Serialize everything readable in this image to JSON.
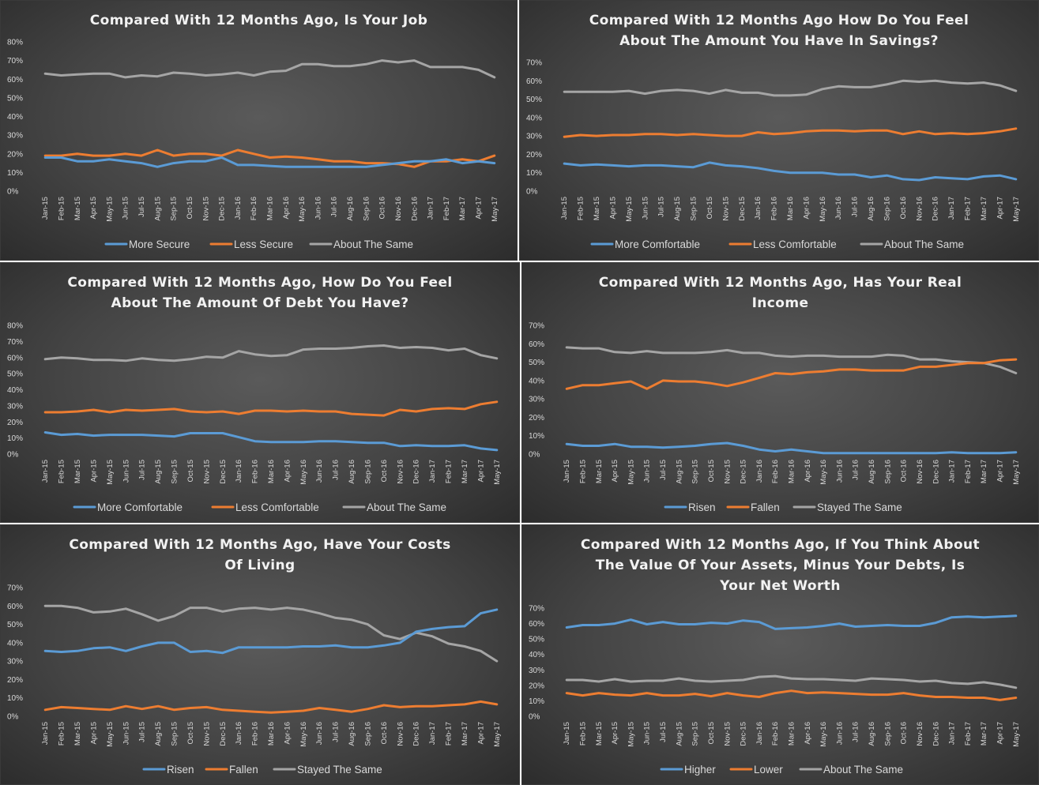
{
  "palette": {
    "s1": "#5b9bd5",
    "s2": "#ed7d31",
    "s3": "#a5a5a5"
  },
  "months": [
    "Jan-15",
    "Feb-15",
    "Mar-15",
    "Apr-15",
    "May-15",
    "Jun-15",
    "Jul-15",
    "Aug-15",
    "Sep-15",
    "Oct-15",
    "Nov-15",
    "Dec-15",
    "Jan-16",
    "Feb-16",
    "Mar-16",
    "Apr-16",
    "May-16",
    "Jun-16",
    "Jul-16",
    "Aug-16",
    "Sep-16",
    "Oct-16",
    "Nov-16",
    "Dec-16",
    "Jan-17",
    "Feb-17",
    "Mar-17",
    "Apr-17",
    "May-17"
  ],
  "chart_data": [
    {
      "type": "line",
      "title": [
        "Compared With 12 Months Ago, Is Your Job"
      ],
      "ylim": [
        0,
        80
      ],
      "yticks": [
        "0%",
        "10%",
        "20%",
        "30%",
        "40%",
        "50%",
        "60%",
        "70%",
        "80%"
      ],
      "x": [
        "Jan-15",
        "Feb-15",
        "Mar-15",
        "Apr-15",
        "May-15",
        "Jun-15",
        "Jul-15",
        "Aug-15",
        "Sep-15",
        "Oct-15",
        "Nov-15",
        "Dec-15",
        "Jan-16",
        "Feb-16",
        "Mar-16",
        "Apr-16",
        "May-16",
        "Jun-16",
        "Jul-16",
        "Aug-16",
        "Sep-16",
        "Oct-16",
        "Nov-16",
        "Dec-16",
        "Jan-17",
        "Feb-17",
        "Mar-17",
        "Apr-17",
        "May-17"
      ],
      "legend": "bottom",
      "series": [
        {
          "name": "More Secure",
          "values": [
            18,
            18,
            16,
            16,
            17,
            16,
            15,
            13,
            15,
            16,
            16,
            18,
            14,
            14,
            13.5,
            13,
            13,
            13,
            13,
            13,
            13,
            14,
            15,
            16,
            16,
            17,
            15,
            16,
            15
          ]
        },
        {
          "name": "Less Secure",
          "values": [
            19,
            19,
            20,
            19,
            19,
            20,
            19,
            22,
            19,
            20,
            20,
            19,
            22,
            20,
            18,
            18.5,
            18,
            17,
            16,
            16,
            15,
            15,
            14.5,
            13,
            16,
            16,
            17,
            16,
            19
          ]
        },
        {
          "name": "About The Same",
          "values": [
            63,
            62,
            62.5,
            63,
            63,
            61,
            62,
            61.5,
            63.5,
            63,
            62,
            62.5,
            63.5,
            62,
            64,
            64.5,
            68,
            68,
            67,
            67,
            68,
            70,
            69,
            70,
            66.5,
            66.5,
            66.5,
            65,
            61
          ]
        }
      ]
    },
    {
      "type": "line",
      "title": [
        "Compared With 12 Months Ago How Do You Feel",
        "About The Amount You Have In Savings?"
      ],
      "ylim": [
        0,
        70
      ],
      "yticks": [
        "0%",
        "10%",
        "20%",
        "30%",
        "40%",
        "50%",
        "60%",
        "70%"
      ],
      "x": [
        "Jan-15",
        "Feb-15",
        "Mar-15",
        "Apr-15",
        "May-15",
        "Jun-15",
        "Jul-15",
        "Aug-15",
        "Sep-15",
        "Oct-15",
        "Nov-15",
        "Dec-15",
        "Jan-16",
        "Feb-16",
        "Mar-16",
        "Apr-16",
        "May-16",
        "Jun-16",
        "Jul-16",
        "Aug-16",
        "Sep-16",
        "Oct-16",
        "Nov-16",
        "Dec-16",
        "Jan-17",
        "Feb-17",
        "Mar-17",
        "Apr-17",
        "May-17"
      ],
      "legend": "bottom",
      "series": [
        {
          "name": "More Comfortable",
          "values": [
            15,
            14,
            14.5,
            14,
            13.5,
            14,
            14,
            13.5,
            13,
            15.5,
            14,
            13.5,
            12.5,
            11,
            10,
            10,
            10,
            9,
            9,
            7.5,
            8.5,
            6.5,
            6,
            7.5,
            7,
            6.5,
            8,
            8.5,
            6.5
          ]
        },
        {
          "name": "Less Comfortable",
          "values": [
            29.5,
            30.5,
            30,
            30.5,
            30.5,
            31,
            31,
            30.5,
            31,
            30.5,
            30,
            30,
            32,
            31,
            31.5,
            32.5,
            33,
            33,
            32.5,
            33,
            33,
            31,
            32.5,
            31,
            31.5,
            31,
            31.5,
            32.5,
            34
          ]
        },
        {
          "name": "About The Same",
          "values": [
            54,
            54,
            54,
            54,
            54.5,
            53,
            54.5,
            55,
            54.5,
            53,
            55,
            53.5,
            53.5,
            52,
            52,
            52.5,
            55.5,
            57,
            56.5,
            56.5,
            58,
            60,
            59.5,
            60,
            59,
            58.5,
            59,
            57.5,
            54.5
          ]
        }
      ]
    },
    {
      "type": "line",
      "title": [
        "Compared With 12 Months Ago, How Do You Feel",
        "About The Amount Of Debt You Have?"
      ],
      "ylim": [
        0,
        80
      ],
      "yticks": [
        "0%",
        "10%",
        "20%",
        "30%",
        "40%",
        "50%",
        "60%",
        "70%",
        "80%"
      ],
      "x": [
        "Jan-15",
        "Feb-15",
        "Mar-15",
        "Apr-15",
        "May-15",
        "Jun-15",
        "Jul-15",
        "Aug-15",
        "Sep-15",
        "Oct-15",
        "Nov-15",
        "Dec-15",
        "Jan-16",
        "Feb-16",
        "Mar-16",
        "Apr-16",
        "May-16",
        "Jun-16",
        "Jul-16",
        "Aug-16",
        "Sep-16",
        "Oct-16",
        "Nov-16",
        "Dec-16",
        "Jan-17",
        "Feb-17",
        "Mar-17",
        "Apr-17",
        "May-17"
      ],
      "legend": "bottom",
      "series": [
        {
          "name": "More Comfortable",
          "values": [
            13.5,
            12,
            12.5,
            11.5,
            12,
            12,
            12,
            11.5,
            11,
            13,
            13,
            13,
            10.5,
            8,
            7.5,
            7.5,
            7.5,
            8,
            8,
            7.5,
            7,
            7,
            5,
            5.5,
            5,
            5,
            5.5,
            3.5,
            2.5
          ]
        },
        {
          "name": "Less Comfortable",
          "values": [
            26,
            26,
            26.5,
            27.5,
            26,
            27.5,
            27,
            27.5,
            28,
            26.5,
            26,
            26.5,
            25,
            27,
            27,
            26.5,
            27,
            26.5,
            26.5,
            25,
            24.5,
            24,
            27.5,
            26.5,
            28,
            28.5,
            28,
            31,
            32.5
          ]
        },
        {
          "name": "About The Same",
          "values": [
            59,
            60,
            59.5,
            58.5,
            58.5,
            58,
            59.5,
            58.5,
            58,
            59,
            60.5,
            60,
            64,
            62,
            61,
            61.5,
            65,
            65.5,
            65.5,
            66,
            67,
            67.5,
            66,
            66.5,
            66,
            64.5,
            65.5,
            61.5,
            59.5
          ]
        }
      ]
    },
    {
      "type": "line",
      "title": [
        "Compared With 12 Months Ago, Has Your Real",
        "Income"
      ],
      "ylim": [
        0,
        70
      ],
      "yticks": [
        "0%",
        "10%",
        "20%",
        "30%",
        "40%",
        "50%",
        "60%",
        "70%"
      ],
      "x": [
        "Jan-15",
        "Feb-15",
        "Mar-15",
        "Apr-15",
        "May-15",
        "Jun-15",
        "Jul-15",
        "Aug-15",
        "Sep-15",
        "Oct-15",
        "Nov-15",
        "Dec-15",
        "Jan-16",
        "Feb-16",
        "Mar-16",
        "Apr-16",
        "May-16",
        "Jun-16",
        "Jul-16",
        "Aug-16",
        "Sep-16",
        "Oct-16",
        "Nov-16",
        "Dec-16",
        "Jan-17",
        "Feb-17",
        "Mar-17",
        "Apr-17",
        "May-17"
      ],
      "legend": "bottom",
      "series": [
        {
          "name": "Risen",
          "values": [
            5.5,
            4.5,
            4.5,
            5.5,
            4,
            4,
            3.5,
            4,
            4.5,
            5.5,
            6,
            4.5,
            2.5,
            1.5,
            2.5,
            1.5,
            0.5,
            0.5,
            0.5,
            0.5,
            0.5,
            0.5,
            0.5,
            0.5,
            1,
            0.5,
            0.5,
            0.5,
            1
          ]
        },
        {
          "name": "Fallen",
          "values": [
            35.5,
            37.5,
            37.5,
            38.5,
            39.5,
            35.5,
            40,
            39.5,
            39.5,
            38.5,
            37,
            39,
            41.5,
            44,
            43.5,
            44.5,
            45,
            46,
            46,
            45.5,
            45.5,
            45.5,
            47.5,
            47.5,
            48.5,
            49.5,
            49.5,
            51,
            51.5
          ]
        },
        {
          "name": "Stayed The Same",
          "values": [
            58,
            57.5,
            57.5,
            55.5,
            55,
            56,
            55,
            55,
            55,
            55.5,
            56.5,
            55,
            55,
            53.5,
            53,
            53.5,
            53.5,
            53,
            53,
            53,
            54,
            53.5,
            51.5,
            51.5,
            50.5,
            50,
            49.5,
            47.5,
            44
          ]
        }
      ]
    },
    {
      "type": "line",
      "title": [
        "Compared With 12 Months Ago, Have Your Costs",
        "Of Living"
      ],
      "ylim": [
        0,
        70
      ],
      "yticks": [
        "0%",
        "10%",
        "20%",
        "30%",
        "40%",
        "50%",
        "60%",
        "70%"
      ],
      "x": [
        "Jan-15",
        "Feb-15",
        "Mar-15",
        "Apr-15",
        "May-15",
        "Jun-15",
        "Jul-15",
        "Aug-15",
        "Sep-15",
        "Oct-15",
        "Nov-15",
        "Dec-15",
        "Jan-16",
        "Feb-16",
        "Mar-16",
        "Apr-16",
        "May-16",
        "Jun-16",
        "Jul-16",
        "Aug-16",
        "Sep-16",
        "Oct-16",
        "Nov-16",
        "Dec-16",
        "Jan-17",
        "Feb-17",
        "Mar-17",
        "Apr-17",
        "May-17"
      ],
      "legend": "bottom",
      "series": [
        {
          "name": "Risen",
          "values": [
            35.5,
            35,
            35.5,
            37,
            37.5,
            35.5,
            38,
            40,
            40,
            35,
            35.5,
            34.5,
            37.5,
            37.5,
            37.5,
            37.5,
            38,
            38,
            38.5,
            37.5,
            37.5,
            38.5,
            40,
            46,
            47.5,
            48.5,
            49,
            56,
            58
          ]
        },
        {
          "name": "Fallen",
          "values": [
            3.5,
            5,
            4.5,
            4,
            3.5,
            5.5,
            4,
            5.5,
            3.5,
            4.5,
            5,
            3.5,
            3,
            2.5,
            2,
            2.5,
            3,
            4.5,
            3.5,
            2.5,
            4,
            6,
            5,
            5.5,
            5.5,
            6,
            6.5,
            8,
            6.5
          ]
        },
        {
          "name": "Stayed The Same",
          "values": [
            60,
            60,
            59,
            56.5,
            57,
            58.5,
            55.5,
            52,
            54.5,
            59,
            59,
            57,
            58.5,
            59,
            58,
            59,
            58,
            56,
            53.5,
            52.5,
            50,
            44,
            42,
            45.5,
            43.5,
            39.5,
            38,
            35.5,
            30
          ]
        }
      ]
    },
    {
      "type": "line",
      "title": [
        "Compared With 12 Months Ago, If You Think About",
        "The Value Of Your Assets, Minus Your Debts, Is",
        "Your Net Worth"
      ],
      "ylim": [
        0,
        70
      ],
      "yticks": [
        "0%",
        "10%",
        "20%",
        "30%",
        "40%",
        "50%",
        "60%",
        "70%"
      ],
      "x": [
        "Jan-15",
        "Feb-15",
        "Mar-15",
        "Apr-15",
        "May-15",
        "Jun-15",
        "Jul-15",
        "Aug-15",
        "Sep-15",
        "Oct-15",
        "Nov-15",
        "Dec-15",
        "Jan-16",
        "Feb-16",
        "Mar-16",
        "Apr-16",
        "May-16",
        "Jun-16",
        "Jul-16",
        "Aug-16",
        "Sep-16",
        "Oct-16",
        "Nov-16",
        "Dec-16",
        "Jan-17",
        "Feb-17",
        "Mar-17",
        "Apr-17",
        "May-17"
      ],
      "legend": "bottom",
      "series": [
        {
          "name": "Higher",
          "values": [
            57.5,
            59,
            59,
            60,
            62.5,
            59.5,
            61,
            59.5,
            59.5,
            60.5,
            60,
            62,
            61,
            56.5,
            57,
            57.5,
            58.5,
            60,
            58,
            58.5,
            59,
            58.5,
            58.5,
            60.5,
            64,
            64.5,
            64,
            64.5,
            65
          ]
        },
        {
          "name": "Lower",
          "values": [
            15,
            13.5,
            15,
            14,
            13.5,
            15,
            13.5,
            13.5,
            14.5,
            13,
            15,
            13.5,
            12.5,
            15,
            16.5,
            15,
            15.5,
            15,
            14.5,
            14,
            14,
            15,
            13.5,
            12.5,
            12.5,
            12,
            12,
            10.5,
            12
          ]
        },
        {
          "name": "About The Same",
          "values": [
            23.5,
            23.5,
            22.5,
            24,
            22.5,
            23,
            23,
            24.5,
            23,
            22.5,
            23,
            23.5,
            25.5,
            26,
            24.5,
            24,
            24,
            23.5,
            23,
            24.5,
            24,
            23.5,
            22.5,
            23,
            21.5,
            21,
            22,
            20.5,
            18.5
          ]
        }
      ]
    }
  ]
}
